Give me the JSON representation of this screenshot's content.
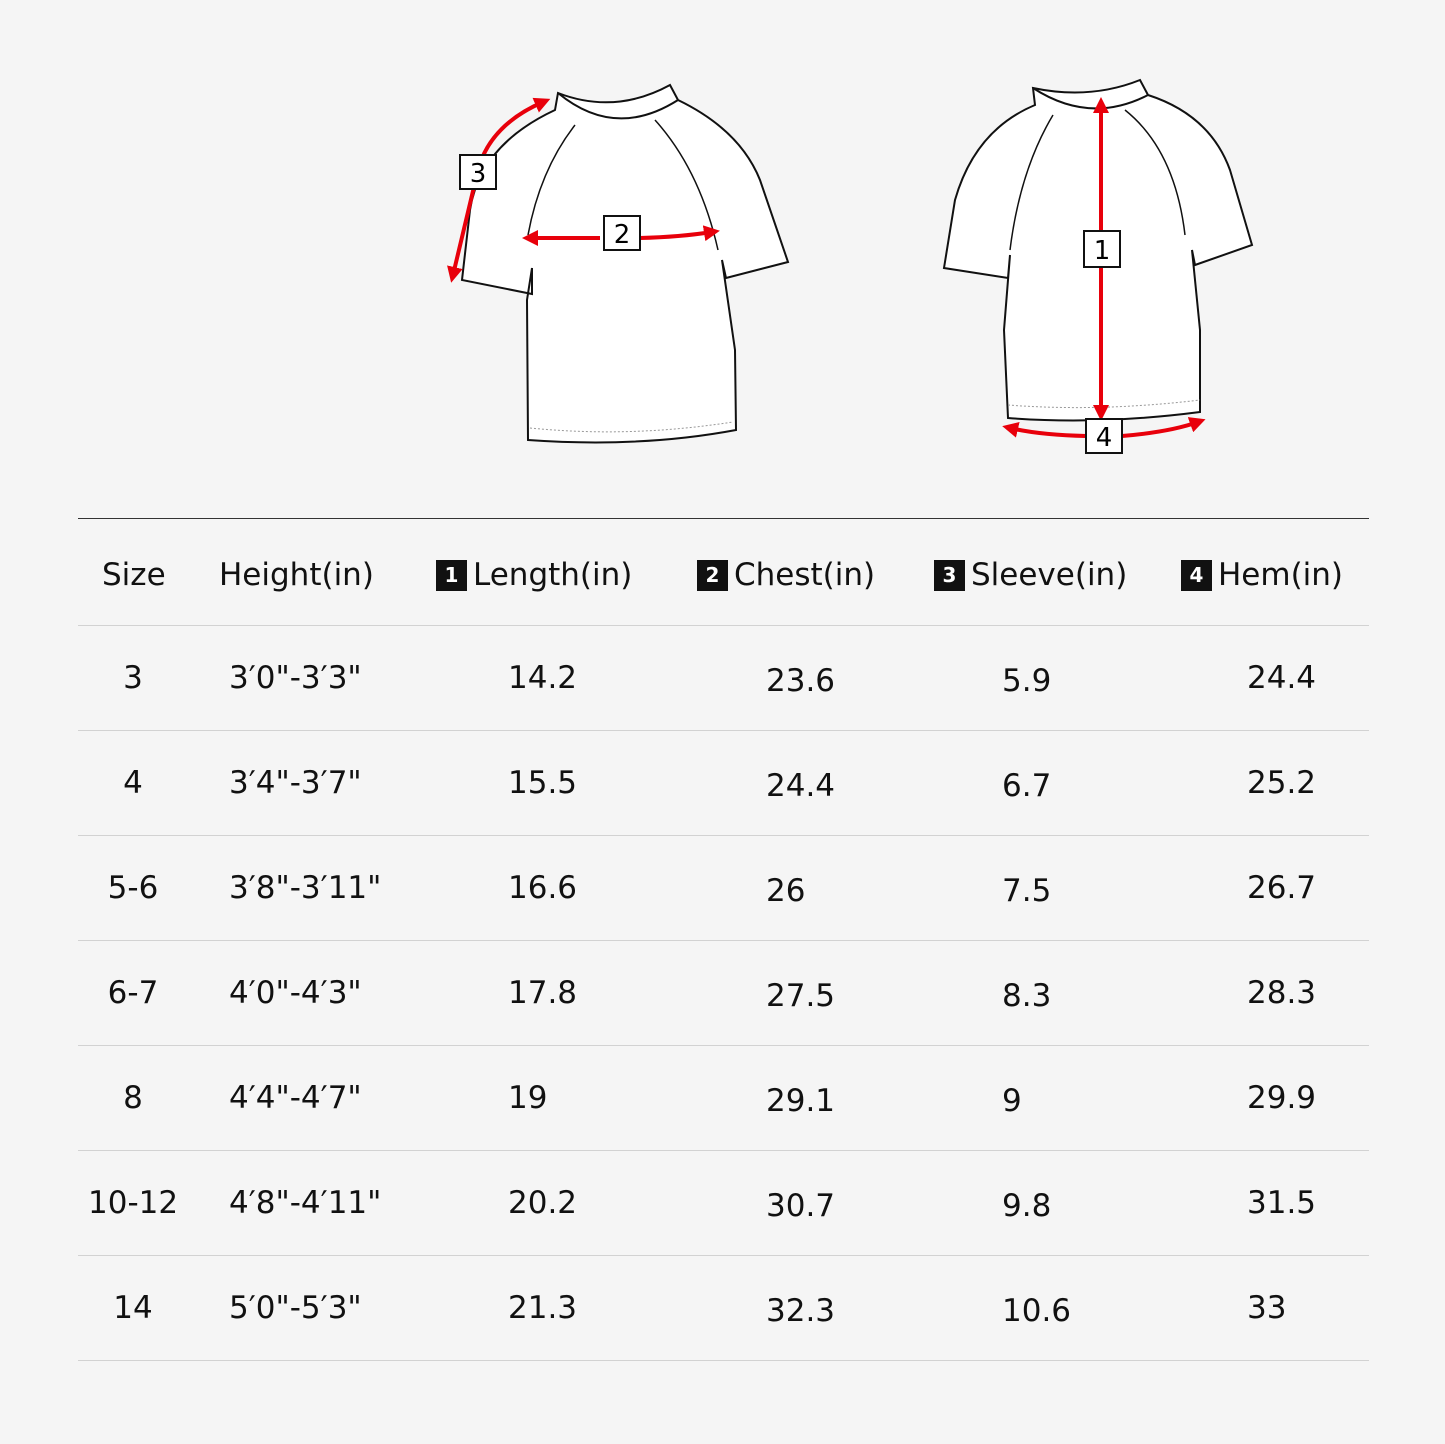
{
  "diagram": {
    "arrow_color": "#e8000b",
    "labels": [
      "1",
      "2",
      "3",
      "4"
    ]
  },
  "table": {
    "headers": [
      {
        "badge": "",
        "label": "Size"
      },
      {
        "badge": "",
        "label": "Height(in)"
      },
      {
        "badge": "1",
        "label": "Length(in)"
      },
      {
        "badge": "2",
        "label": "Chest(in)"
      },
      {
        "badge": "3",
        "label": "Sleeve(in)"
      },
      {
        "badge": "4",
        "label": "Hem(in)"
      }
    ],
    "rows": [
      [
        "3",
        "3′0\"-3′3\"",
        "14.2",
        "23.6",
        "5.9",
        "24.4"
      ],
      [
        "4",
        "3′4\"-3′7\"",
        "15.5",
        "24.4",
        "6.7",
        "25.2"
      ],
      [
        "5-6",
        "3′8\"-3′11\"",
        "16.6",
        "26",
        "7.5",
        "26.7"
      ],
      [
        "6-7",
        "4′0\"-4′3\"",
        "17.8",
        "27.5",
        "8.3",
        "28.3"
      ],
      [
        "8",
        "4′4\"-4′7\"",
        "19",
        "29.1",
        "9",
        "29.9"
      ],
      [
        "10-12",
        "4′8\"-4′11\"",
        "20.2",
        "30.7",
        "9.8",
        "31.5"
      ],
      [
        "14",
        "5′0\"-5′3\"",
        "21.3",
        "32.3",
        "10.6",
        "33"
      ]
    ]
  }
}
